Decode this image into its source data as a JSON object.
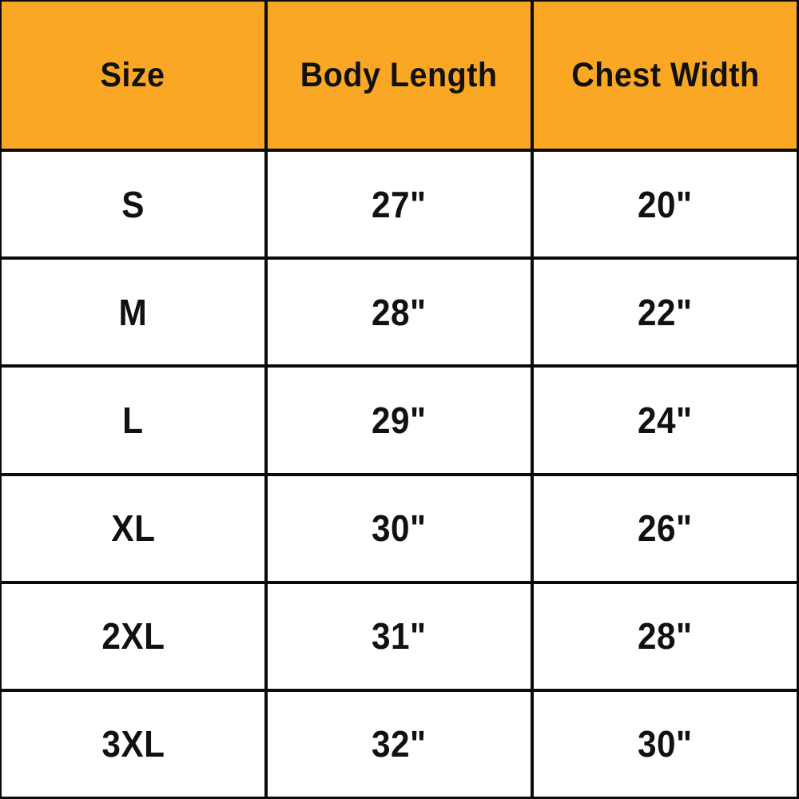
{
  "colors": {
    "header_bg": "#FAA726",
    "grid_line": "#0B0B0B",
    "cell_bg": "#FFFFFF",
    "text": "#111111"
  },
  "chart_data": {
    "type": "table",
    "title": "",
    "columns": [
      "Size",
      "Body Length",
      "Chest Width"
    ],
    "rows": [
      [
        "S",
        "27\"",
        "20\""
      ],
      [
        "M",
        "28\"",
        "22\""
      ],
      [
        "L",
        "29\"",
        "24\""
      ],
      [
        "XL",
        "30\"",
        "26\""
      ],
      [
        "2XL",
        "31\"",
        "28\""
      ],
      [
        "3XL",
        "32\"",
        "30\""
      ]
    ]
  }
}
